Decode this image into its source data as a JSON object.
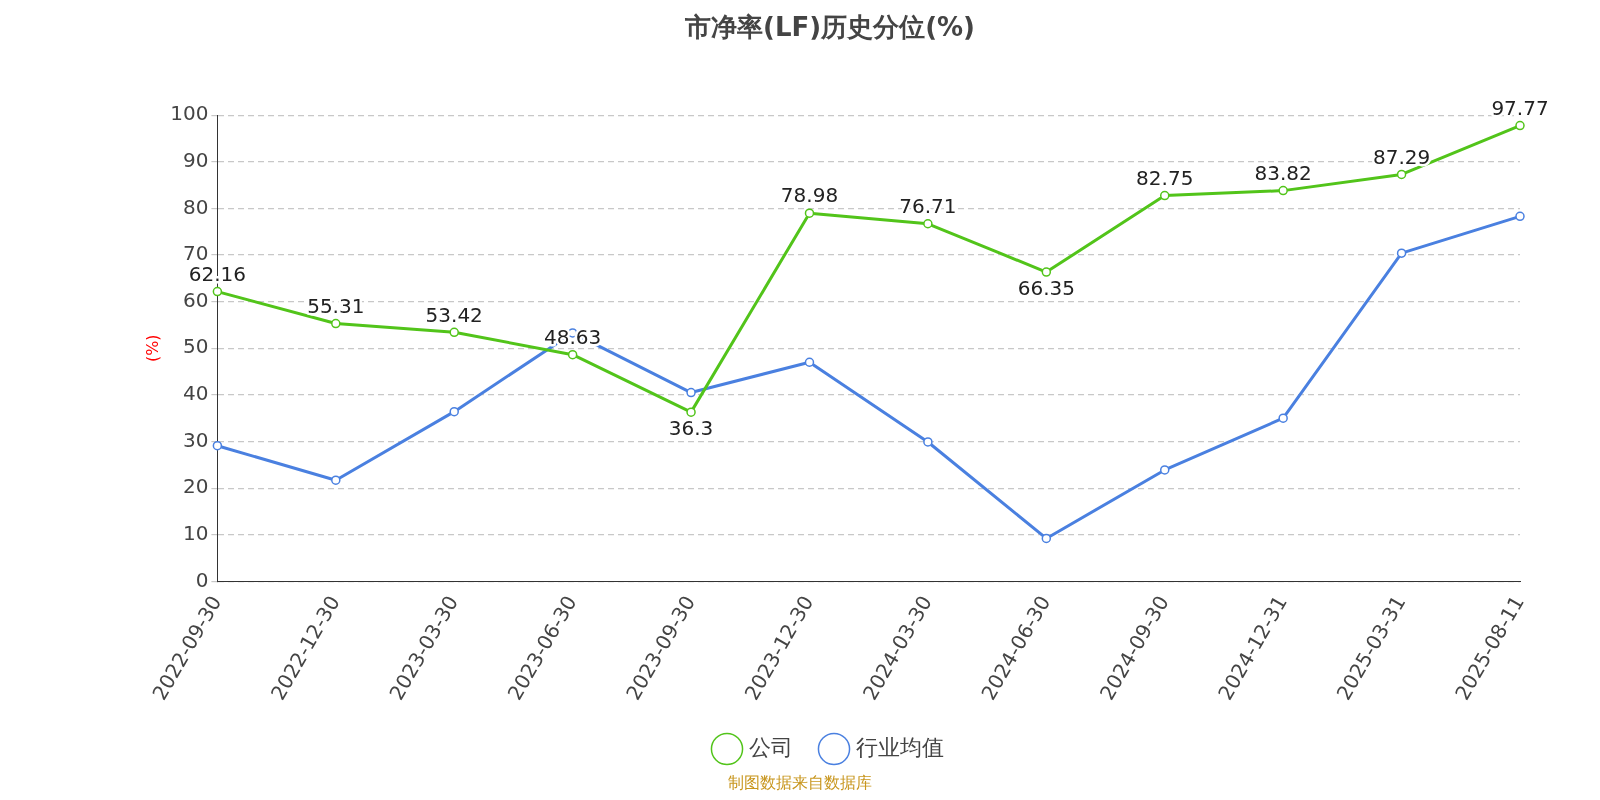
{
  "chart_data": {
    "type": "line",
    "title": "市净率(LF)历史分位(%)",
    "ylabel": "(%)",
    "categories": [
      "2022-09-30",
      "2022-12-30",
      "2023-03-30",
      "2023-06-30",
      "2023-09-30",
      "2023-12-30",
      "2024-03-30",
      "2024-06-30",
      "2024-09-30",
      "2024-12-31",
      "2025-03-31",
      "2025-08-11"
    ],
    "series": [
      {
        "name": "公司",
        "color": "#52c41a",
        "values": [
          62.16,
          55.31,
          53.42,
          48.63,
          36.3,
          78.98,
          76.71,
          66.35,
          82.75,
          83.82,
          87.29,
          97.77
        ],
        "value_labels": [
          "62.16",
          "55.31",
          "53.42",
          "48.63",
          "36.3",
          "78.98",
          "76.71",
          "66.35",
          "82.75",
          "83.82",
          "87.29",
          "97.77"
        ]
      },
      {
        "name": "行业均值",
        "color": "#4a80e0",
        "values": [
          29.1,
          21.7,
          36.4,
          53.3,
          40.5,
          47,
          29.9,
          9.2,
          23.9,
          35,
          70.4,
          78.3
        ]
      }
    ],
    "ylim": [
      0,
      100
    ],
    "yticks": [
      0,
      10,
      20,
      30,
      40,
      50,
      60,
      70,
      80,
      90,
      100
    ],
    "grid": "y",
    "legend": "bottom",
    "marker": "circle",
    "line_style": "solid",
    "annotations": [
      "制图数据来自数据库"
    ]
  }
}
